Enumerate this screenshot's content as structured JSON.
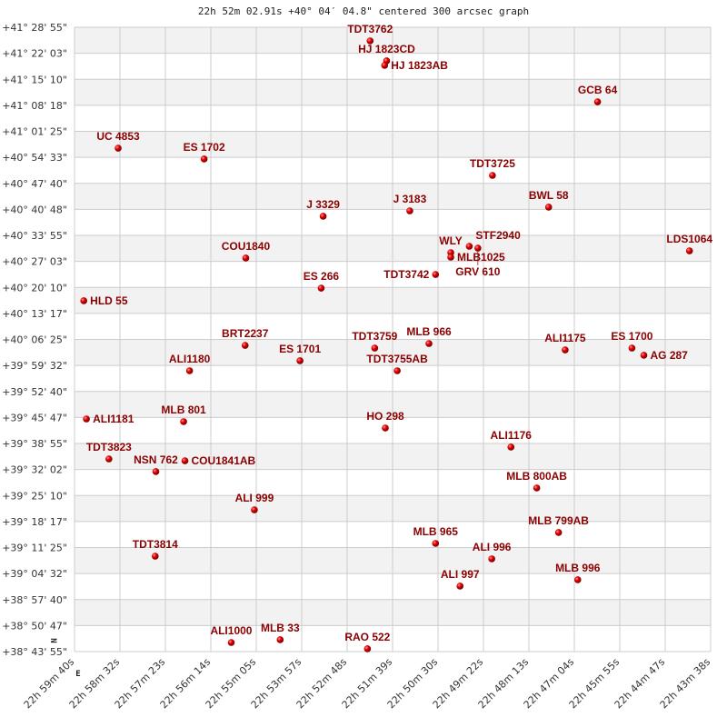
{
  "chart_data": {
    "type": "scatter",
    "title": "22h 52m 02.91s +40° 04′ 04.8\" centered 300 arcsec graph",
    "xlim": [
      "22h 59m 40s",
      "22h 43m 38s"
    ],
    "ylim": [
      "+38° 43' 55\"",
      "+41° 28' 55\""
    ],
    "grid": true,
    "x_ticks": [
      "22h 59m 40s",
      "22h 58m 32s",
      "22h 57m 23s",
      "22h 56m 14s",
      "22h 55m 05s",
      "22h 53m 57s",
      "22h 52m 48s",
      "22h 51m 39s",
      "22h 50m 30s",
      "22h 49m 22s",
      "22h 48m 13s",
      "22h 47m 04s",
      "22h 45m 55s",
      "22h 44m 47s",
      "22h 43m 38s"
    ],
    "y_ticks": [
      "+41° 28' 55\"",
      "+41° 22' 03\"",
      "+41° 15' 10\"",
      "+41° 08' 18\"",
      "+41° 01' 25\"",
      "+40° 54' 33\"",
      "+40° 47' 40\"",
      "+40° 40' 48\"",
      "+40° 33' 55\"",
      "+40° 27' 03\"",
      "+40° 20' 10\"",
      "+40° 13' 17\"",
      "+40° 06' 25\"",
      "+39° 59' 32\"",
      "+39° 52' 40\"",
      "+39° 45' 47\"",
      "+39° 38' 55\"",
      "+39° 32' 02\"",
      "+39° 25' 10\"",
      "+39° 18' 17\"",
      "+39° 11' 25\"",
      "+39° 04' 32\"",
      "+38° 57' 40\"",
      "+38° 50' 47\"",
      "+38° 43' 55\""
    ],
    "compass": {
      "north": "N",
      "east": "E"
    },
    "colors": {
      "label": "#8b0000",
      "point": "#e00000",
      "band": "#f2f2f2",
      "grid": "#cccccc"
    },
    "points": [
      {
        "name": "TDT3762",
        "ra": "22 52 13",
        "dec": "41 25 19"
      },
      {
        "name": "HJ 1823CD",
        "ra": "22 51 48",
        "dec": "41 20 02"
      },
      {
        "name": "HJ 1823AB",
        "ra": "22 51 51",
        "dec": "41 18 50"
      },
      {
        "name": "GCB  64",
        "ra": "22 46 29",
        "dec": "41 09 13"
      },
      {
        "name": "UC 4853",
        "ra": "22 58 34",
        "dec": "40 56 58"
      },
      {
        "name": "ES 1702",
        "ra": "22 56 24",
        "dec": "40 54 06"
      },
      {
        "name": "TDT3725",
        "ra": "22 49 08",
        "dec": "40 49 46"
      },
      {
        "name": "BWL  58",
        "ra": "22 47 43",
        "dec": "40 41 22"
      },
      {
        "name": "J  3329",
        "ra": "22 53 24",
        "dec": "40 38 58"
      },
      {
        "name": "J  3183",
        "ra": "22 51 13",
        "dec": "40 40 24"
      },
      {
        "name": "LDS1064",
        "ra": "22 44 10",
        "dec": "40 29 50"
      },
      {
        "name": "COU1840",
        "ra": "22 55 21",
        "dec": "40 27 55"
      },
      {
        "name": "WLY",
        "ra": "22 50 11",
        "dec": "40 29 21"
      },
      {
        "name": "MLB1025",
        "ra": "22 50 11",
        "dec": "40 28 09"
      },
      {
        "name": "STF2940",
        "ra": "22 49 43",
        "dec": "40 31 02"
      },
      {
        "name": "GRV 610",
        "ra": "22 49 30",
        "dec": "40 30 33"
      },
      {
        "name": "TDT3742",
        "ra": "22 50 34",
        "dec": "40 23 35"
      },
      {
        "name": "HLD  55",
        "ra": "22 59 26",
        "dec": "40 16 38"
      },
      {
        "name": "ES  266",
        "ra": "22 53 27",
        "dec": "40 19 59"
      },
      {
        "name": "TDT3759",
        "ra": "22 52 06",
        "dec": "40 04 08"
      },
      {
        "name": "MLB 966",
        "ra": "22 50 44",
        "dec": "40 05 20"
      },
      {
        "name": "TDT3755AB",
        "ra": "22 51 32",
        "dec": "39 58 08"
      },
      {
        "name": "BRT2237",
        "ra": "22 55 22",
        "dec": "40 04 51"
      },
      {
        "name": "ES 1701",
        "ra": "22 53 59",
        "dec": "40 00 47"
      },
      {
        "name": "ALI1180",
        "ra": "22 56 46",
        "dec": "39 58 08"
      },
      {
        "name": "ALI1175",
        "ra": "22 47 18",
        "dec": "40 03 39"
      },
      {
        "name": "ES 1700",
        "ra": "22 45 37",
        "dec": "40 04 08"
      },
      {
        "name": "AG  287",
        "ra": "22 45 19",
        "dec": "40 02 13"
      },
      {
        "name": "ALI1181",
        "ra": "22 59 22",
        "dec": "39 45 24"
      },
      {
        "name": "MLB 801",
        "ra": "22 56 55",
        "dec": "39 44 41"
      },
      {
        "name": "HO  298",
        "ra": "22 51 50",
        "dec": "39 43 00"
      },
      {
        "name": "ALI1176",
        "ra": "22 48 40",
        "dec": "39 37 58"
      },
      {
        "name": "TDT3823",
        "ra": "22 58 48",
        "dec": "39 34 50"
      },
      {
        "name": "NSN 762",
        "ra": "22 57 37",
        "dec": "39 31 29"
      },
      {
        "name": "COU1841AB",
        "ra": "22 56 53",
        "dec": "39 34 21"
      },
      {
        "name": "MLB 800AB",
        "ra": "22 48 01",
        "dec": "39 27 09"
      },
      {
        "name": "ALI 999",
        "ra": "22 55 08",
        "dec": "39 21 23"
      },
      {
        "name": "MLB 799AB",
        "ra": "22 47 28",
        "dec": "39 15 23"
      },
      {
        "name": "MLB 965",
        "ra": "22 50 34",
        "dec": "39 12 30"
      },
      {
        "name": "ALI 996",
        "ra": "22 49 09",
        "dec": "39 08 25"
      },
      {
        "name": "TDT3814",
        "ra": "22 57 38",
        "dec": "39 09 08"
      },
      {
        "name": "ALI 997",
        "ra": "22 49 57",
        "dec": "39 01 13"
      },
      {
        "name": "MLB 996",
        "ra": "22 46 59",
        "dec": "39 02 54"
      },
      {
        "name": "ALI1000",
        "ra": "22 55 43",
        "dec": "38 46 19"
      },
      {
        "name": "MLB  33",
        "ra": "22 54 29",
        "dec": "38 47 03"
      },
      {
        "name": "RAO 522",
        "ra": "22 52 17",
        "dec": "38 44 39"
      }
    ]
  }
}
